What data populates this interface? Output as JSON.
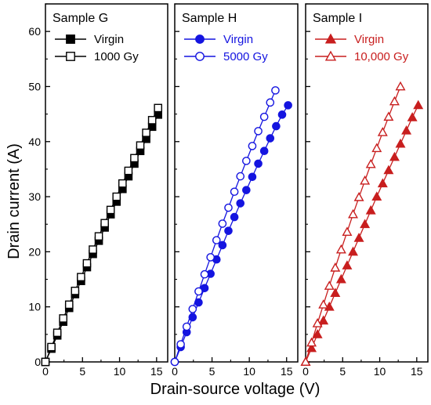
{
  "chart_data": {
    "type": "line",
    "xlabel": "Drain-source voltage (V)",
    "ylabel": "Drain current (A)",
    "ylim": [
      0,
      65
    ],
    "y_ticks": [
      "0",
      "10",
      "20",
      "30",
      "40",
      "50",
      "60"
    ],
    "panels": [
      {
        "title": "Sample G",
        "xlim": [
          0,
          16.5
        ],
        "x_ticks": [
          "0",
          "5",
          "10",
          "15"
        ],
        "color": "#000000",
        "series": [
          {
            "name": "Virgin",
            "marker": "square",
            "filled": true,
            "x": [
              0,
              0.8,
              1.6,
              2.4,
              3.2,
              4.0,
              4.8,
              5.6,
              6.4,
              7.2,
              8.0,
              8.8,
              9.6,
              10.4,
              11.2,
              12.0,
              12.8,
              13.6,
              14.4,
              15.2
            ],
            "y": [
              0,
              2.4,
              4.8,
              7.3,
              9.8,
              12.3,
              14.7,
              17.2,
              19.6,
              22.0,
              24.4,
              26.8,
              29.1,
              31.4,
              33.7,
              36.0,
              38.3,
              40.5,
              42.7,
              44.9
            ]
          },
          {
            "name": "1000 Gy",
            "marker": "square",
            "filled": false,
            "x": [
              0,
              0.8,
              1.6,
              2.4,
              3.2,
              4.0,
              4.8,
              5.6,
              6.4,
              7.2,
              8.0,
              8.8,
              9.6,
              10.4,
              11.2,
              12.0,
              12.8,
              13.6,
              14.4,
              15.2
            ],
            "y": [
              0,
              2.7,
              5.3,
              7.9,
              10.4,
              12.9,
              15.4,
              17.9,
              20.4,
              22.8,
              25.2,
              27.6,
              30.0,
              32.4,
              34.7,
              37.0,
              39.3,
              41.6,
              43.9,
              46.1
            ]
          }
        ]
      },
      {
        "title": "Sample H",
        "xlim": [
          0,
          16.5
        ],
        "x_ticks": [
          "0",
          "5",
          "10",
          "15"
        ],
        "color": "#1414e0",
        "series": [
          {
            "name": "Virgin",
            "marker": "circle",
            "filled": true,
            "x": [
              0,
              0.8,
              1.6,
              2.4,
              3.2,
              4.0,
              4.8,
              5.6,
              6.4,
              7.2,
              8.0,
              8.8,
              9.6,
              10.4,
              11.2,
              12.0,
              12.8,
              13.6,
              14.4,
              15.2
            ],
            "y": [
              0,
              2.7,
              5.4,
              8.1,
              10.8,
              13.4,
              16.0,
              18.6,
              21.2,
              23.8,
              26.3,
              28.8,
              31.2,
              33.6,
              36.0,
              38.3,
              40.6,
              42.8,
              44.9,
              46.6
            ]
          },
          {
            "name": "5000 Gy",
            "marker": "circle",
            "filled": false,
            "x": [
              0,
              0.8,
              1.6,
              2.4,
              3.2,
              4.0,
              4.8,
              5.6,
              6.4,
              7.2,
              8.0,
              8.8,
              9.6,
              10.4,
              11.2,
              12.0,
              12.8,
              13.5
            ],
            "y": [
              0,
              3.2,
              6.4,
              9.6,
              12.8,
              15.9,
              19.0,
              22.1,
              25.1,
              28.0,
              30.9,
              33.7,
              36.5,
              39.2,
              41.9,
              44.5,
              47.1,
              49.3
            ]
          }
        ]
      },
      {
        "title": "Sample I",
        "xlim": [
          0,
          16.5
        ],
        "x_ticks": [
          "0",
          "5",
          "10",
          "15"
        ],
        "color": "#c81e1e",
        "series": [
          {
            "name": "Virgin",
            "marker": "triangle",
            "filled": true,
            "x": [
              0,
              0.8,
              1.6,
              2.4,
              3.2,
              4.0,
              4.8,
              5.6,
              6.4,
              7.2,
              8.0,
              8.8,
              9.6,
              10.4,
              11.2,
              12.0,
              12.8,
              13.6,
              14.4,
              15.2
            ],
            "y": [
              0,
              2.5,
              5.0,
              7.5,
              10.0,
              12.5,
              15.0,
              17.5,
              20.0,
              22.5,
              25.0,
              27.5,
              30.0,
              32.4,
              34.8,
              37.2,
              39.6,
              42.0,
              44.4,
              46.6
            ]
          },
          {
            "name": "10,000 Gy",
            "marker": "triangle",
            "filled": false,
            "x": [
              0,
              0.8,
              1.6,
              2.4,
              3.2,
              4.0,
              4.8,
              5.6,
              6.4,
              7.2,
              8.0,
              8.8,
              9.6,
              10.4,
              11.2,
              12.0,
              12.8
            ],
            "y": [
              0,
              3.5,
              7.0,
              10.4,
              13.8,
              17.1,
              20.4,
              23.6,
              26.8,
              29.9,
              32.9,
              35.9,
              38.8,
              41.7,
              44.5,
              47.3,
              50.0
            ]
          }
        ]
      }
    ]
  }
}
